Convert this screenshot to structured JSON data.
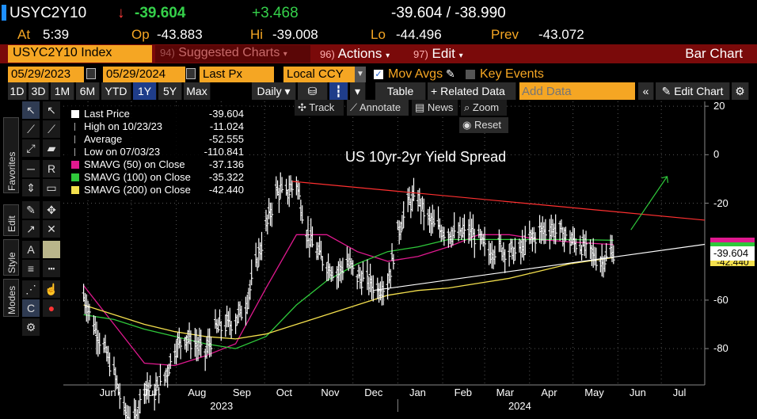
{
  "header": {
    "ticker": "USYC2Y10",
    "arrow": "↓",
    "last": "-39.604",
    "change": "+3.468",
    "bid_ask": "-39.604 / -38.990",
    "at_label": "At",
    "time": "5:39",
    "op_label": "Op",
    "open": "-43.883",
    "hi_label": "Hi",
    "high": "-39.008",
    "lo_label": "Lo",
    "low": "-44.496",
    "prev_label": "Prev",
    "prev": "-43.072"
  },
  "menu": {
    "security": "USYC2Y10 Index",
    "suggested_num": "94)",
    "suggested": "Suggested Charts",
    "actions_num": "96)",
    "actions": "Actions",
    "edit_num": "97)",
    "edit": "Edit",
    "chart_type": "Bar Chart"
  },
  "controls": {
    "start_date": "05/29/2023",
    "end_date": "05/29/2024",
    "field": "Last Px",
    "currency": "Local CCY",
    "mov_avgs": "Mov Avgs",
    "key_events": "Key Events"
  },
  "periods": [
    "1D",
    "3D",
    "1M",
    "6M",
    "YTD",
    "1Y",
    "5Y",
    "Max"
  ],
  "selected_period": "1Y",
  "toolbar2": {
    "frequency": "Daily",
    "table": "Table",
    "related": "Related Data",
    "add_data_placeholder": "Add Data",
    "edit_chart": "Edit Chart"
  },
  "chart_tools": {
    "track": "Track",
    "annotate": "Annotate",
    "news": "News",
    "zoom": "Zoom",
    "reset": "Reset"
  },
  "left_tabs": {
    "favorites": "Favorites",
    "edit": "Edit",
    "style": "Style",
    "modes": "Modes"
  },
  "legend": [
    {
      "label": "Last Price",
      "value": "-39.604",
      "color": "#ffffff",
      "kind": "box"
    },
    {
      "label": "High on 10/23/23",
      "value": "-11.024",
      "color": "#aaaaaa",
      "kind": "marker"
    },
    {
      "label": "Average",
      "value": "-52.555",
      "color": "#aaaaaa",
      "kind": "marker"
    },
    {
      "label": "Low on 07/03/23",
      "value": "-110.841",
      "color": "#aaaaaa",
      "kind": "marker"
    },
    {
      "label": "SMAVG (50)  on Close",
      "value": "-37.136",
      "color": "#e0198f",
      "kind": "box"
    },
    {
      "label": "SMAVG (100)  on Close",
      "value": "-35.322",
      "color": "#2fc93b",
      "kind": "box"
    },
    {
      "label": "SMAVG (200)  on Close",
      "value": "-42.440",
      "color": "#f4e04d",
      "kind": "box"
    }
  ],
  "chart_data": {
    "type": "line",
    "title": "US 10yr-2yr Yield Spread",
    "ylim": [
      -95,
      22
    ],
    "y_ticks": [
      20,
      0,
      -20,
      -60,
      -80
    ],
    "x_ticks": [
      "Jun",
      "Jul",
      "Aug",
      "Sep",
      "Oct",
      "Nov",
      "Dec",
      "Jan",
      "Feb",
      "Mar",
      "Apr",
      "May",
      "Jun",
      "Jul"
    ],
    "years": [
      "2023",
      "2024"
    ],
    "last_value_label": "-39.604",
    "hidden_value_label": "-42.440",
    "series": [
      {
        "name": "Last Price",
        "color": "#ffffff",
        "x": [
          "2023-05-29",
          "2023-06-05",
          "2023-06-12",
          "2023-06-19",
          "2023-06-26",
          "2023-07-03",
          "2023-07-10",
          "2023-07-17",
          "2023-07-24",
          "2023-07-31",
          "2023-08-07",
          "2023-08-14",
          "2023-08-21",
          "2023-08-28",
          "2023-09-04",
          "2023-09-11",
          "2023-09-18",
          "2023-09-25",
          "2023-10-02",
          "2023-10-09",
          "2023-10-16",
          "2023-10-23",
          "2023-10-30",
          "2023-11-06",
          "2023-11-13",
          "2023-11-20",
          "2023-11-27",
          "2023-12-04",
          "2023-12-11",
          "2023-12-18",
          "2023-12-25",
          "2024-01-01",
          "2024-01-08",
          "2024-01-15",
          "2024-01-22",
          "2024-01-29",
          "2024-02-05",
          "2024-02-12",
          "2024-02-19",
          "2024-02-26",
          "2024-03-04",
          "2024-03-11",
          "2024-03-18",
          "2024-03-25",
          "2024-04-01",
          "2024-04-08",
          "2024-04-15",
          "2024-04-22",
          "2024-04-29",
          "2024-05-06",
          "2024-05-13",
          "2024-05-20",
          "2024-05-29"
        ],
        "y": [
          -58,
          -70,
          -80,
          -90,
          -106,
          -110,
          -95,
          -98,
          -92,
          -80,
          -75,
          -78,
          -82,
          -72,
          -70,
          -68,
          -62,
          -45,
          -30,
          -15,
          -16,
          -11,
          -32,
          -40,
          -45,
          -49,
          -44,
          -50,
          -52,
          -55,
          -53,
          -32,
          -20,
          -18,
          -27,
          -30,
          -32,
          -33,
          -31,
          -35,
          -40,
          -38,
          -40,
          -40,
          -35,
          -32,
          -30,
          -32,
          -35,
          -37,
          -40,
          -44,
          -39.6
        ]
      },
      {
        "name": "SMAVG (50)  on Close",
        "color": "#e0198f",
        "x": [
          "2023-05-29",
          "2023-06-19",
          "2023-07-10",
          "2023-07-31",
          "2023-08-21",
          "2023-09-11",
          "2023-10-02",
          "2023-10-23",
          "2023-11-13",
          "2023-12-04",
          "2023-12-25",
          "2024-01-15",
          "2024-02-05",
          "2024-02-26",
          "2024-03-18",
          "2024-04-08",
          "2024-04-29",
          "2024-05-29"
        ],
        "y": [
          -54,
          -70,
          -86,
          -87,
          -83,
          -78,
          -55,
          -33,
          -33,
          -40,
          -44,
          -42,
          -38,
          -33,
          -33,
          -35,
          -36,
          -37.1
        ]
      },
      {
        "name": "SMAVG (100)  on Close",
        "color": "#2fc93b",
        "x": [
          "2023-05-29",
          "2023-06-19",
          "2023-07-10",
          "2023-07-31",
          "2023-08-21",
          "2023-09-11",
          "2023-10-02",
          "2023-10-23",
          "2023-11-13",
          "2023-12-04",
          "2023-12-25",
          "2024-01-15",
          "2024-02-05",
          "2024-02-26",
          "2024-03-18",
          "2024-04-08",
          "2024-04-29",
          "2024-05-29"
        ],
        "y": [
          -66,
          -68,
          -72,
          -75,
          -78,
          -80,
          -75,
          -62,
          -52,
          -45,
          -40,
          -38,
          -35,
          -35,
          -35,
          -35,
          -35,
          -35.3
        ]
      },
      {
        "name": "SMAVG (200)  on Close",
        "color": "#f4e04d",
        "x": [
          "2023-05-29",
          "2023-06-19",
          "2023-07-10",
          "2023-07-31",
          "2023-08-21",
          "2023-09-11",
          "2023-10-02",
          "2023-10-23",
          "2023-11-13",
          "2023-12-04",
          "2023-12-25",
          "2024-01-15",
          "2024-02-05",
          "2024-02-26",
          "2024-03-18",
          "2024-04-08",
          "2024-04-29",
          "2024-05-29"
        ],
        "y": [
          -62,
          -66,
          -70,
          -73,
          -75,
          -76,
          -74,
          -70,
          -66,
          -62,
          -58,
          -56,
          -55,
          -53,
          -51,
          -48,
          -45,
          -42.4
        ]
      }
    ]
  },
  "colors": {
    "amber": "#f5a623",
    "positive": "#35d04a",
    "negative": "#ff3b3b",
    "menu_bar": "#7a0a0a",
    "selected_button": "#1f3d8a",
    "trendline_upper": "#ff3030",
    "trendline_lower": "#ffffff",
    "arrow": "#2fc93b"
  }
}
